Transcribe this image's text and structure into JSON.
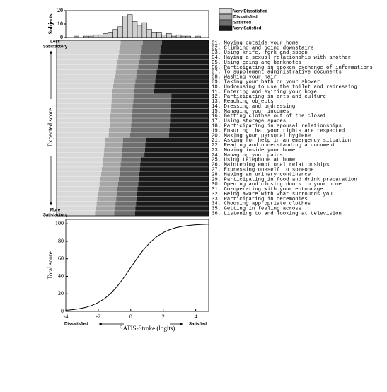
{
  "chart_data": [
    {
      "type": "histogram",
      "ylabel": "Subjects",
      "color": "#d0d0d0",
      "bins": [
        -3.5,
        -3.2,
        -2.9,
        -2.6,
        -2.3,
        -2.0,
        -1.7,
        -1.4,
        -1.1,
        -0.8,
        -0.5,
        -0.2,
        0.1,
        0.4,
        0.7,
        1.0,
        1.3,
        1.6,
        1.9,
        2.2,
        2.5,
        2.8,
        3.1,
        3.4,
        3.7,
        4.0,
        4.3
      ],
      "counts": [
        1,
        0,
        1,
        1,
        2,
        2,
        3,
        4,
        6,
        8,
        16,
        17,
        12,
        9,
        11,
        6,
        4,
        4,
        2,
        3,
        1,
        2,
        1,
        1,
        0,
        1
      ],
      "xlim": [
        -4,
        4.8
      ],
      "ylim": [
        0,
        20
      ],
      "yticks": [
        0,
        10,
        20
      ]
    },
    {
      "type": "item-map",
      "ylabel": "Expected score",
      "top_label": [
        "Less",
        "Satisfactory"
      ],
      "bottom_label": [
        "More",
        "Satisfactory"
      ],
      "legend": [
        {
          "name": "Very Dissatisfied",
          "color": "#d9d9d9"
        },
        {
          "name": "Dissatisfied",
          "color": "#a6a6a6"
        },
        {
          "name": "Satisfied",
          "color": "#6e6e6e"
        },
        {
          "name": "Very Satisfied",
          "color": "#1a1a1a"
        }
      ],
      "xlim": [
        -4,
        4.8
      ],
      "items": [
        "01. Moving outside your home",
        "02. Climbing and going downstairs",
        "03. Using knife, fork and spoon",
        "04. Having a sexual relationship with another",
        "05. Using coins and banknotes",
        "06. Participating in spoken exchange of informations",
        "07. To supplement administrative documents",
        "08. Washing your hair",
        "09. Taking your bath or your shower",
        "10. Undressing to use the toilet and redressing",
        "11. Entering and exiting your home",
        "12. Participating in arts and culture",
        "13. Reaching objects",
        "14. Dressing and undressing",
        "15. Managing your incomes",
        "16. Getting clothes out of the closet",
        "17. Using storage spaces",
        "18. Participating in spousal relationships",
        "19. Ensuring that your rights are respected",
        "20. Making your personal hygiene",
        "21. Asking for help in an emergency situation",
        "22. Reading and understanding a document",
        "23. Moving inside your home",
        "24. Managing your pains",
        "25. Using telephone at home",
        "26. Maintening emotional relationships",
        "27. Expressing oneself to someone",
        "28. Having an urinary continence",
        "29. Participating in food and drink preparation",
        "30. Opening and closing doors in your home",
        "31. Co-operating with your entourage",
        "32. Being aware with what surrounds you",
        "33. Participating in ceremonies",
        "34. Choosing appropriate clothes",
        "35. Getting in feeling across",
        "36. Listening to and looking at television"
      ],
      "thresholds": [
        [
          -0.62,
          0.74,
          1.92
        ],
        [
          -0.66,
          0.68,
          1.88
        ],
        [
          -0.72,
          0.64,
          1.82
        ],
        [
          -0.76,
          0.58,
          1.76
        ],
        [
          -0.82,
          0.52,
          1.72
        ],
        [
          -0.88,
          0.46,
          1.66
        ],
        [
          -0.92,
          0.4,
          1.6
        ],
        [
          -0.98,
          0.34,
          1.56
        ],
        [
          -1.04,
          0.28,
          1.5
        ],
        [
          -1.08,
          0.24,
          1.46
        ],
        [
          -1.14,
          0.18,
          1.4
        ],
        [
          -1.14,
          0.18,
          2.5
        ],
        [
          -1.18,
          0.16,
          2.48
        ],
        [
          -1.2,
          0.12,
          2.46
        ],
        [
          -1.22,
          0.1,
          2.44
        ],
        [
          -1.26,
          0.08,
          2.42
        ],
        [
          -1.28,
          0.04,
          2.42
        ],
        [
          -1.3,
          0.02,
          2.4
        ],
        [
          -1.34,
          0,
          2.38
        ],
        [
          -1.36,
          -0.04,
          2.36
        ],
        [
          -1.58,
          -0.48,
          0.92
        ],
        [
          -1.6,
          -0.5,
          0.9
        ],
        [
          -1.64,
          -0.54,
          0.88
        ],
        [
          -1.66,
          -0.56,
          0.84
        ],
        [
          -1.7,
          -0.58,
          0.62
        ],
        [
          -1.74,
          -0.62,
          0.58
        ],
        [
          -1.78,
          -0.66,
          0.56
        ],
        [
          -1.82,
          -0.7,
          0.52
        ],
        [
          -1.88,
          -0.74,
          0.48
        ],
        [
          -1.92,
          -0.78,
          0.46
        ],
        [
          -1.96,
          -0.82,
          0.42
        ],
        [
          -2,
          -0.86,
          0.38
        ],
        [
          -2.06,
          -0.9,
          0.36
        ],
        [
          -2.1,
          -0.94,
          0.32
        ],
        [
          -2.16,
          -0.98,
          0.28
        ],
        [
          -2.2,
          -1.02,
          0.26
        ]
      ]
    },
    {
      "type": "line",
      "ylabel": "Total score",
      "xlabel": "SATIS-Stroke (logits)",
      "x_left_label": "Dissatisfied",
      "x_right_label": "Satisfied",
      "color": "#000000",
      "x": [
        -4,
        -3.6,
        -3.2,
        -2.8,
        -2.4,
        -2,
        -1.6,
        -1.2,
        -0.8,
        -0.4,
        0,
        0.4,
        0.8,
        1.2,
        1.6,
        2,
        2.4,
        2.8,
        3.2,
        3.6,
        4,
        4.4,
        4.8
      ],
      "values": [
        1.2,
        1.9,
        2.9,
        4.4,
        6.7,
        10,
        14.7,
        21.1,
        29.3,
        39.2,
        50,
        60.8,
        70.7,
        78.9,
        85.3,
        90,
        93.3,
        95.6,
        97.1,
        98.1,
        98.8,
        99.2,
        99.5
      ],
      "xlim": [
        -4,
        4.8
      ],
      "ylim": [
        0,
        105
      ],
      "xticks": [
        -4,
        -2,
        0,
        2,
        4
      ],
      "yticks": [
        0,
        20,
        40,
        60,
        80,
        100
      ]
    }
  ]
}
